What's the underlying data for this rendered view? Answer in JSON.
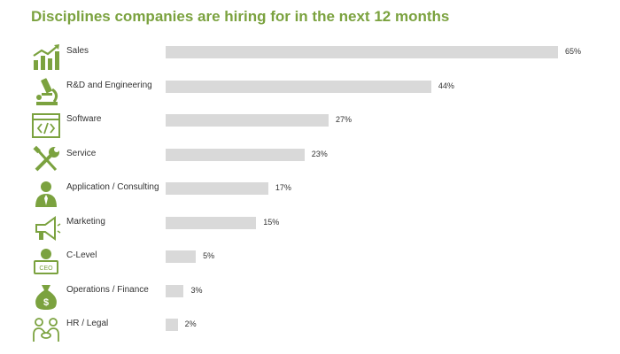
{
  "colors": {
    "title": "#7ba23f",
    "icon": "#7ba23f",
    "bar": "#d9d9d9",
    "text": "#333333"
  },
  "chart_data": {
    "type": "bar",
    "orientation": "horizontal",
    "title": "Disciplines companies are hiring for in the next 12 months",
    "value_suffix": "%",
    "xlim": [
      0,
      65
    ],
    "grid": false,
    "legend": "none",
    "categories": [
      "Sales",
      "R&D and Engineering",
      "Software",
      "Service",
      "Application / Consulting",
      "Marketing",
      "C-Level",
      "Operations / Finance",
      "HR / Legal"
    ],
    "values": [
      65,
      44,
      27,
      23,
      17,
      15,
      5,
      3,
      2
    ],
    "value_labels": [
      "65%",
      "44%",
      "27%",
      "23%",
      "17%",
      "15%",
      "5%",
      "3%",
      "2%"
    ],
    "icons": [
      "growth-chart-icon",
      "microscope-icon",
      "code-window-icon",
      "wrench-screwdriver-icon",
      "consultant-icon",
      "megaphone-icon",
      "ceo-icon",
      "money-bag-icon",
      "handshake-people-icon"
    ]
  }
}
